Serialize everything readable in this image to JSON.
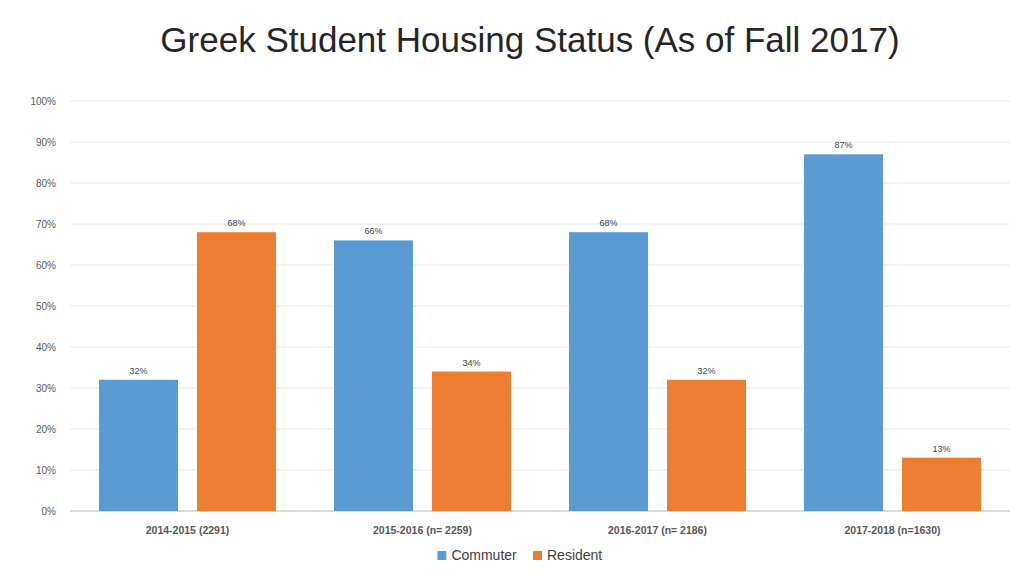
{
  "chart_data": {
    "type": "bar",
    "title": "Greek Student Housing Status (As of Fall 2017)",
    "categories": [
      "2014-2015 (2291)",
      "2015-2016 (n= 2259)",
      "2016-2017 (n= 2186)",
      "2017-2018 (n=1630)"
    ],
    "series": [
      {
        "name": "Commuter",
        "color": "#5b9bd5",
        "values": [
          32,
          66,
          68,
          87
        ],
        "value_labels": [
          "32%",
          "66%",
          "68%",
          "87%"
        ]
      },
      {
        "name": "Resident",
        "color": "#ed7d31",
        "values": [
          68,
          34,
          32,
          13
        ],
        "value_labels": [
          "68%",
          "34%",
          "32%",
          "13%"
        ]
      }
    ],
    "ylim": [
      0,
      100
    ],
    "yticks": [
      {
        "value": 0,
        "label": "0%"
      },
      {
        "value": 10,
        "label": "10%"
      },
      {
        "value": 20,
        "label": "20%"
      },
      {
        "value": 30,
        "label": "30%"
      },
      {
        "value": 40,
        "label": "40%"
      },
      {
        "value": 50,
        "label": "50%"
      },
      {
        "value": 60,
        "label": "60%"
      },
      {
        "value": 70,
        "label": "70%"
      },
      {
        "value": 80,
        "label": "80%"
      },
      {
        "value": 90,
        "label": "90%"
      },
      {
        "value": 100,
        "label": "100%"
      }
    ],
    "grid": true,
    "legend": "bottom",
    "data_labels": true
  }
}
